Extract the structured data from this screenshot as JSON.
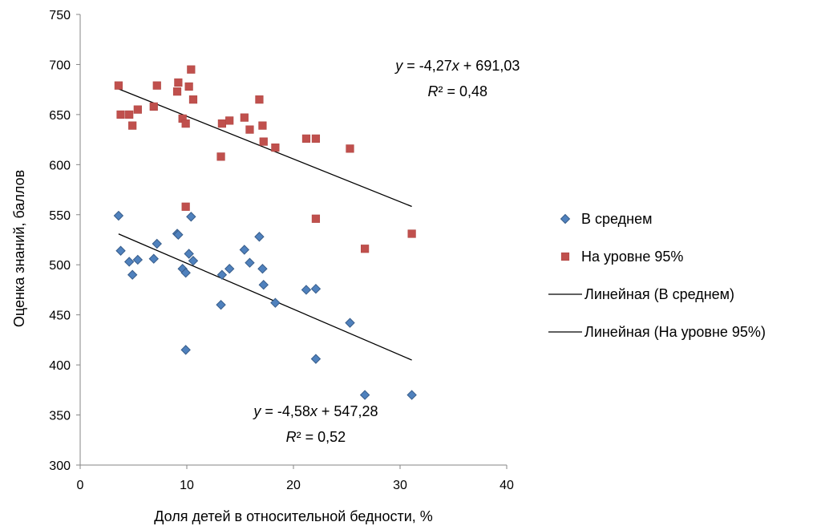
{
  "chart_data": {
    "type": "scatter",
    "title": "",
    "xlabel": "Доля детей в относительной бедности, %",
    "ylabel": "Оценка знаний, баллов",
    "xlim": [
      0,
      40
    ],
    "ylim": [
      300,
      750
    ],
    "xticks": [
      0,
      10,
      20,
      30,
      40
    ],
    "yticks": [
      300,
      350,
      400,
      450,
      500,
      550,
      600,
      650,
      700,
      750
    ],
    "grid": false,
    "legend_position": "right",
    "series": [
      {
        "name": "В среднем",
        "marker": "diamond",
        "color": "#4F81BD",
        "points": [
          [
            3.6,
            549
          ],
          [
            3.8,
            514
          ],
          [
            4.6,
            503
          ],
          [
            4.9,
            490
          ],
          [
            5.4,
            505
          ],
          [
            6.9,
            506
          ],
          [
            7.2,
            521
          ],
          [
            9.1,
            531
          ],
          [
            9.2,
            530
          ],
          [
            9.6,
            496
          ],
          [
            9.9,
            492
          ],
          [
            9.9,
            415
          ],
          [
            10.2,
            511
          ],
          [
            10.4,
            548
          ],
          [
            10.6,
            504
          ],
          [
            13.2,
            460
          ],
          [
            13.3,
            490
          ],
          [
            14.0,
            496
          ],
          [
            15.4,
            515
          ],
          [
            15.9,
            502
          ],
          [
            16.8,
            528
          ],
          [
            17.1,
            496
          ],
          [
            17.2,
            480
          ],
          [
            18.3,
            462
          ],
          [
            21.2,
            475
          ],
          [
            22.1,
            476
          ],
          [
            22.1,
            406
          ],
          [
            25.3,
            442
          ],
          [
            26.7,
            370
          ],
          [
            31.1,
            370
          ]
        ]
      },
      {
        "name": "На уровне 95%",
        "marker": "square",
        "color": "#C0504D",
        "points": [
          [
            3.6,
            679
          ],
          [
            3.8,
            650
          ],
          [
            4.6,
            650
          ],
          [
            4.9,
            639
          ],
          [
            5.4,
            655
          ],
          [
            6.9,
            658
          ],
          [
            7.2,
            679
          ],
          [
            9.1,
            673
          ],
          [
            9.2,
            682
          ],
          [
            9.6,
            646
          ],
          [
            9.9,
            641
          ],
          [
            9.9,
            558
          ],
          [
            10.2,
            678
          ],
          [
            10.4,
            695
          ],
          [
            10.6,
            665
          ],
          [
            13.2,
            608
          ],
          [
            13.3,
            641
          ],
          [
            14.0,
            644
          ],
          [
            15.4,
            647
          ],
          [
            15.9,
            635
          ],
          [
            16.8,
            665
          ],
          [
            17.1,
            639
          ],
          [
            17.2,
            623
          ],
          [
            18.3,
            617
          ],
          [
            21.2,
            626
          ],
          [
            22.1,
            626
          ],
          [
            22.1,
            546
          ],
          [
            25.3,
            616
          ],
          [
            26.7,
            516
          ],
          [
            31.1,
            531
          ]
        ]
      }
    ],
    "trendlines": [
      {
        "name": "Линейная (В среднем)",
        "slope": -4.58,
        "intercept": 547.28,
        "x_range": [
          3.6,
          31.1
        ],
        "equation": "y = -4,58x + 547,28",
        "r2": "R² = 0,52",
        "label_anchor": [
          22.1,
          349
        ]
      },
      {
        "name": "Линейная (На уровне 95%)",
        "slope": -4.27,
        "intercept": 691.03,
        "x_range": [
          3.6,
          31.1
        ],
        "equation": "y = -4,27x + 691,03",
        "r2": "R² = 0,48",
        "label_anchor": [
          35.4,
          694
        ]
      }
    ]
  }
}
